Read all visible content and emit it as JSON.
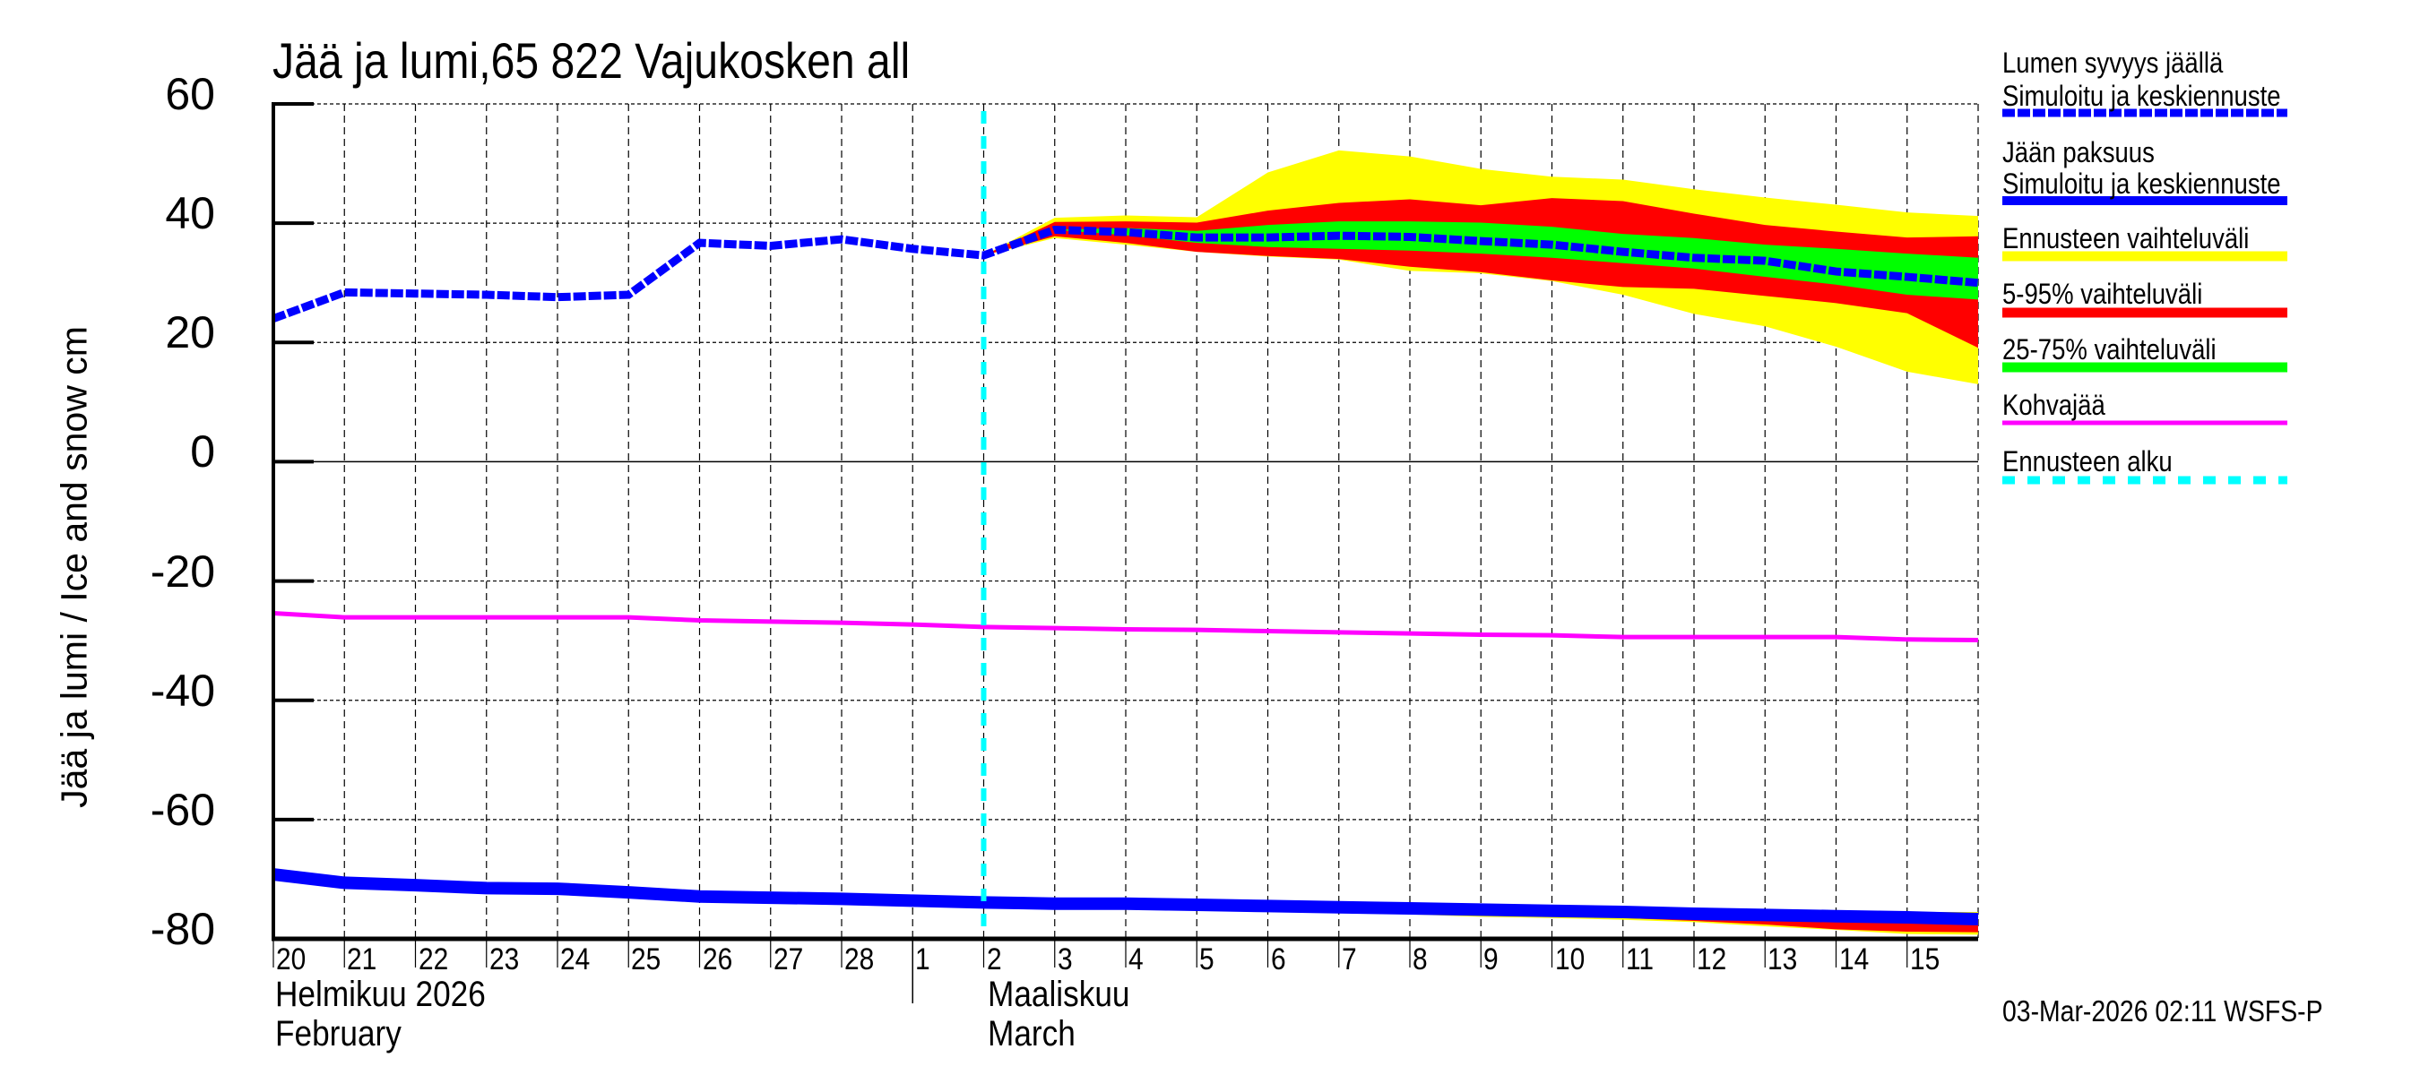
{
  "header": {
    "title": "Jää ja lumi,65 822 Vajukosken all"
  },
  "axes": {
    "ylabel": "Jää ja lumi / Ice and snow    cm",
    "yticks": [
      "60",
      "40",
      "20",
      "0",
      "-20",
      "-40",
      "-60",
      "-80"
    ],
    "xticks": [
      "20",
      "21",
      "22",
      "23",
      "24",
      "25",
      "26",
      "27",
      "28",
      "1",
      "2",
      "3",
      "4",
      "5",
      "6",
      "7",
      "8",
      "9",
      "10",
      "11",
      "12",
      "13",
      "14",
      "15"
    ],
    "month1_fi": "Helmikuu  2026",
    "month1_en": "February",
    "month2_fi": "Maaliskuu",
    "month2_en": "March"
  },
  "legend": {
    "items": [
      {
        "label": "Lumen syvyys jäällä",
        "sublabel": "Simuloitu ja keskiennuste",
        "color": "#0000ff",
        "style": "dashed-thick"
      },
      {
        "label": "Jään paksuus",
        "sublabel": "Simuloitu ja keskiennuste",
        "color": "#0000ff",
        "style": "solid-thick"
      },
      {
        "label": "Ennusteen vaihteluväli",
        "color": "#ffff00",
        "style": "band"
      },
      {
        "label": "5-95% vaihteluväli",
        "color": "#ff0000",
        "style": "band"
      },
      {
        "label": "25-75% vaihteluväli",
        "color": "#00ff00",
        "style": "band"
      },
      {
        "label": "Kohvajää",
        "color": "#ff00ff",
        "style": "solid-thin"
      },
      {
        "label": "Ennusteen alku",
        "color": "#00ffff",
        "style": "dashed"
      }
    ]
  },
  "footer": {
    "timestamp": "03-Mar-2026 02:11 WSFS-P"
  },
  "chart_data": {
    "type": "line",
    "title": "Jää ja lumi,65 822 Vajukosken all",
    "xlabel": "",
    "ylabel": "Jää ja lumi / Ice and snow    cm",
    "ylim": [
      -80,
      60
    ],
    "yticks": [
      60,
      40,
      20,
      0,
      -20,
      -40,
      -60,
      -80
    ],
    "x_start": "2026-02-20",
    "x_days": 24,
    "x": [
      "Feb 20",
      "Feb 21",
      "Feb 22",
      "Feb 23",
      "Feb 24",
      "Feb 25",
      "Feb 26",
      "Feb 27",
      "Feb 28",
      "Mar 1",
      "Mar 2",
      "Mar 3",
      "Mar 4",
      "Mar 5",
      "Mar 6",
      "Mar 7",
      "Mar 8",
      "Mar 9",
      "Mar 10",
      "Mar 11",
      "Mar 12",
      "Mar 13",
      "Mar 14",
      "Mar 15",
      "Mar 16"
    ],
    "forecast_start_day": 10,
    "grid": true,
    "legend_position": "right",
    "series": [
      {
        "name": "Lumen syvyys jäällä – Simuloitu ja keskiennuste",
        "color": "#0000ff",
        "style": "dashed",
        "values": [
          24,
          28.4,
          28.2,
          28,
          27.6,
          28,
          36.7,
          36.2,
          37.3,
          35.7,
          34.6,
          38.9,
          38.5,
          37.6,
          37.6,
          37.9,
          37.7,
          37.0,
          36.4,
          35.2,
          34.2,
          33.7,
          31.9,
          31.0,
          30.0
        ]
      },
      {
        "name": "Jään paksuus – Simuloitu ja keskiennuste",
        "color": "#0000ff",
        "style": "solid",
        "values": [
          -69.2,
          -70.6,
          -71.0,
          -71.5,
          -71.6,
          -72.2,
          -72.9,
          -73.1,
          -73.3,
          -73.6,
          -73.9,
          -74.1,
          -74.1,
          -74.3,
          -74.5,
          -74.7,
          -74.9,
          -75.1,
          -75.3,
          -75.5,
          -75.8,
          -76.0,
          -76.2,
          -76.4,
          -76.7
        ]
      },
      {
        "name": "Kohvajää",
        "color": "#ff00ff",
        "style": "solid",
        "values": [
          -25.4,
          -26.1,
          -26.1,
          -26.1,
          -26.1,
          -26.1,
          -26.6,
          -26.8,
          -27.0,
          -27.3,
          -27.7,
          -27.9,
          -28.1,
          -28.2,
          -28.4,
          -28.6,
          -28.8,
          -29.0,
          -29.1,
          -29.4,
          -29.4,
          -29.4,
          -29.4,
          -29.8,
          -29.9
        ]
      }
    ],
    "bands": [
      {
        "name": "Ennusteen vaihteluväli (snow)",
        "color": "#ffff00",
        "start_day": 10,
        "upper": [
          34.6,
          40.9,
          41.3,
          41.0,
          48.5,
          52.2,
          51.2,
          49.1,
          47.8,
          47.3,
          45.7,
          44.3,
          43.1,
          41.8,
          41.2
        ],
        "lower": [
          34.6,
          37.5,
          36.4,
          35.2,
          34.4,
          33.9,
          32.0,
          31.6,
          30.3,
          28.0,
          24.8,
          22.7,
          19.3,
          15.1,
          13.0
        ]
      },
      {
        "name": "5-95% vaihteluväli (snow)",
        "color": "#ff0000",
        "start_day": 10,
        "upper": [
          34.6,
          40.2,
          40.3,
          40.1,
          42.1,
          43.4,
          44.0,
          43.0,
          44.2,
          43.7,
          41.6,
          39.7,
          38.6,
          37.6,
          37.8
        ],
        "lower": [
          34.6,
          37.8,
          36.7,
          35.2,
          34.5,
          34.0,
          32.7,
          31.8,
          30.4,
          29.3,
          29.0,
          27.8,
          26.6,
          24.9,
          19.1
        ]
      },
      {
        "name": "25-75% vaihteluväli (snow)",
        "color": "#00ff00",
        "start_day": 10,
        "upper": [
          34.6,
          38.9,
          39.2,
          38.7,
          39.7,
          40.3,
          40.3,
          40.1,
          39.4,
          38.2,
          37.5,
          36.4,
          35.7,
          34.9,
          34.2
        ],
        "lower": [
          34.6,
          38.9,
          38.0,
          36.7,
          36.0,
          35.7,
          35.4,
          34.9,
          34.2,
          33.3,
          32.4,
          31.0,
          29.7,
          28.0,
          27.2
        ]
      },
      {
        "name": "Ennusteen vaihteluväli (ice)",
        "color": "#ffff00",
        "start_day": 10,
        "upper": [
          -73.9,
          -74.1,
          -74.1,
          -74.3,
          -74.5,
          -74.7,
          -74.9,
          -75.1,
          -75.3,
          -75.5,
          -75.8,
          -75.8,
          -75.5,
          -75.5,
          -75.5
        ],
        "lower": [
          -73.9,
          -74.1,
          -74.2,
          -74.6,
          -75.0,
          -75.3,
          -75.9,
          -76.3,
          -76.5,
          -76.8,
          -77.2,
          -77.9,
          -78.5,
          -79.2,
          -79.3
        ]
      },
      {
        "name": "5-95% vaihteluväli (ice)",
        "color": "#ff0000",
        "start_day": 10,
        "upper": [
          -73.9,
          -74.1,
          -74.1,
          -74.3,
          -74.5,
          -74.7,
          -74.9,
          -75.1,
          -75.3,
          -75.5,
          -75.8,
          -75.9,
          -75.7,
          -75.7,
          -75.7
        ],
        "lower": [
          -73.9,
          -74.1,
          -74.2,
          -74.5,
          -74.8,
          -75.1,
          -75.6,
          -75.9,
          -76.2,
          -76.5,
          -77.0,
          -77.6,
          -78.4,
          -78.8,
          -78.9
        ]
      }
    ]
  }
}
